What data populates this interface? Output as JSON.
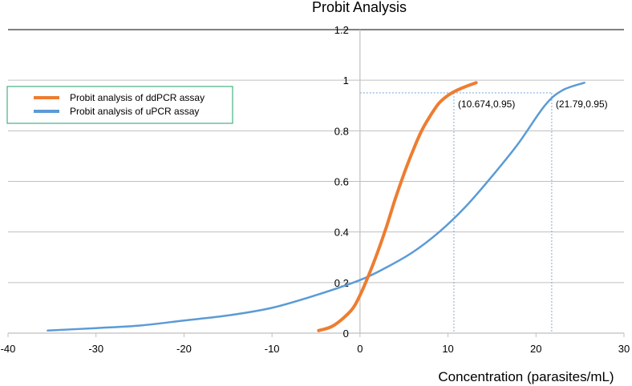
{
  "chart_data": {
    "type": "line",
    "title": "Probit Analysis",
    "xlabel": "Concentration (parasites/mL)",
    "ylabel": "",
    "xlim": [
      -40,
      30
    ],
    "ylim": [
      0,
      1.2
    ],
    "x_ticks": [
      -40,
      -30,
      -20,
      -10,
      0,
      10,
      20,
      30
    ],
    "y_ticks": [
      0,
      0.2,
      0.4,
      0.6,
      0.8,
      1,
      1.2
    ],
    "x_tick_labels": [
      "-40",
      "-30",
      "-20",
      "-10",
      "0",
      "10",
      "20",
      "30"
    ],
    "y_tick_labels": [
      "0",
      "0.2",
      "0.4",
      "0.6",
      "0.8",
      "1",
      "1.2"
    ],
    "grid": "horizontal",
    "legend_position": "top-left",
    "series": [
      {
        "name": "Probit analysis of ddPCR assay",
        "color": "#ED7D31",
        "x": [
          -4.7,
          -3,
          -1,
          0,
          1,
          2,
          3,
          4,
          5,
          6,
          7,
          8,
          9,
          10,
          11,
          12,
          13.2
        ],
        "y": [
          0.01,
          0.03,
          0.09,
          0.15,
          0.23,
          0.32,
          0.42,
          0.53,
          0.63,
          0.72,
          0.8,
          0.86,
          0.91,
          0.94,
          0.96,
          0.975,
          0.99
        ]
      },
      {
        "name": "Probit analysis of uPCR assay",
        "color": "#5B9BD5",
        "x": [
          -35.5,
          -30,
          -25,
          -20,
          -15,
          -10,
          -5,
          0,
          3,
          6,
          9,
          12,
          15,
          18,
          21,
          23,
          25.5
        ],
        "y": [
          0.01,
          0.02,
          0.03,
          0.05,
          0.07,
          0.1,
          0.15,
          0.21,
          0.26,
          0.32,
          0.4,
          0.5,
          0.62,
          0.75,
          0.9,
          0.96,
          0.99
        ]
      }
    ],
    "annotations": [
      {
        "label": "(10.674,0.95)",
        "x": 10.674,
        "y": 0.95
      },
      {
        "label": "(21.79,0.95)",
        "x": 21.79,
        "y": 0.95
      }
    ]
  }
}
